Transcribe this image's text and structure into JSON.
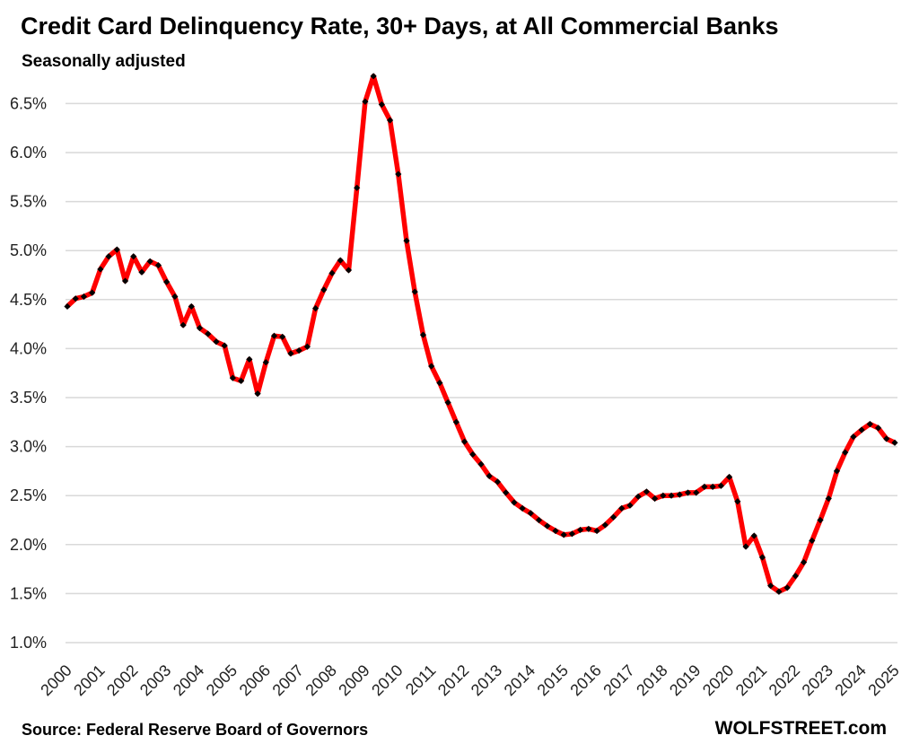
{
  "chart_data": {
    "type": "line",
    "title": "Credit Card Delinquency Rate, 30+ Days, at All Commercial Banks",
    "subtitle": "Seasonally adjusted",
    "source": "Source: Federal Reserve Board of Governors",
    "brand": "WOLFSTREET.com",
    "xlabel": "",
    "ylabel": "",
    "x_tick_labels": [
      "2000",
      "2001",
      "2002",
      "2003",
      "2004",
      "2005",
      "2006",
      "2007",
      "2008",
      "2009",
      "2010",
      "2011",
      "2012",
      "2013",
      "2014",
      "2015",
      "2016",
      "2017",
      "2018",
      "2019",
      "2020",
      "2021",
      "2022",
      "2023",
      "2024",
      "2025"
    ],
    "y_ticks": [
      1.0,
      1.5,
      2.0,
      2.5,
      3.0,
      3.5,
      4.0,
      4.5,
      5.0,
      5.5,
      6.0,
      6.5
    ],
    "y_tick_labels": [
      "1.0%",
      "1.5%",
      "2.0%",
      "2.5%",
      "3.0%",
      "3.5%",
      "4.0%",
      "4.5%",
      "5.0%",
      "5.5%",
      "6.0%",
      "6.5%"
    ],
    "ylim": [
      1.0,
      6.8
    ],
    "xlim": [
      2000,
      2025
    ],
    "frequency": "quarterly",
    "x_start": "2000 Q1",
    "x_end": "2025 Q1",
    "grid": "horizontal",
    "line_color": "#ff0000",
    "marker_color": "#000000",
    "marker": "diamond",
    "values": [
      4.43,
      4.51,
      4.53,
      4.57,
      4.81,
      4.94,
      5.01,
      4.69,
      4.94,
      4.78,
      4.89,
      4.85,
      4.68,
      4.53,
      4.24,
      4.43,
      4.21,
      4.15,
      4.07,
      4.03,
      3.7,
      3.67,
      3.89,
      3.54,
      3.86,
      4.13,
      4.12,
      3.95,
      3.98,
      4.02,
      4.41,
      4.6,
      4.77,
      4.9,
      4.8,
      5.64,
      6.52,
      6.78,
      6.49,
      6.33,
      5.78,
      5.1,
      4.58,
      4.14,
      3.82,
      3.65,
      3.45,
      3.25,
      3.05,
      2.92,
      2.82,
      2.7,
      2.64,
      2.53,
      2.43,
      2.37,
      2.32,
      2.25,
      2.19,
      2.14,
      2.1,
      2.11,
      2.15,
      2.16,
      2.14,
      2.2,
      2.28,
      2.37,
      2.4,
      2.49,
      2.54,
      2.47,
      2.5,
      2.5,
      2.51,
      2.53,
      2.53,
      2.59,
      2.59,
      2.6,
      2.69,
      2.44,
      1.98,
      2.09,
      1.87,
      1.58,
      1.52,
      1.56,
      1.68,
      1.82,
      2.04,
      2.25,
      2.47,
      2.75,
      2.94,
      3.1,
      3.17,
      3.23,
      3.19,
      3.08,
      3.04
    ]
  }
}
